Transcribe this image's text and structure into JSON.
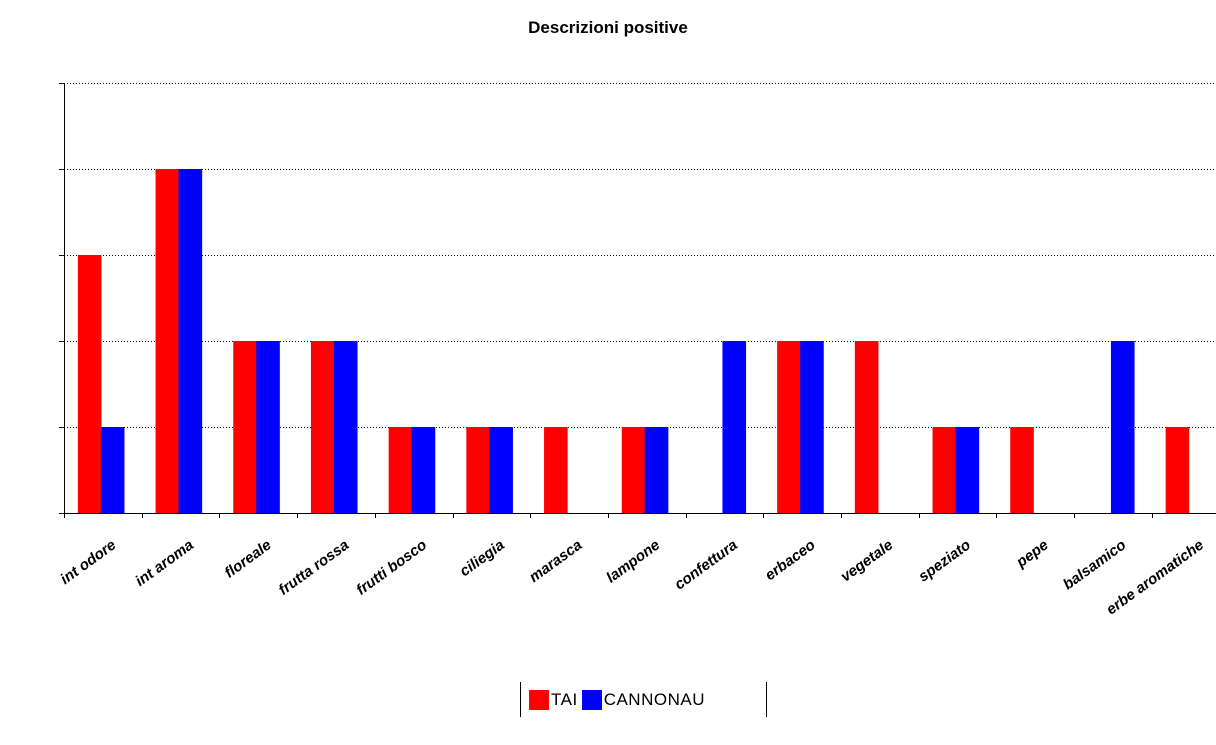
{
  "chart_data": {
    "type": "bar",
    "title": "Descrizioni positive",
    "categories": [
      "int odore",
      "int aroma",
      "floreale",
      "frutta rossa",
      "frutti bosco",
      "ciliegia",
      "marasca",
      "lampone",
      "confettura",
      "erbaceo",
      "vegetale",
      "speziato",
      "pepe",
      "balsamico",
      "erbe aromatiche"
    ],
    "series": [
      {
        "name": "TAI",
        "color": "#ff0000",
        "values": [
          3,
          4,
          2,
          2,
          1,
          1,
          1,
          1,
          0,
          2,
          2,
          1,
          1,
          0,
          1
        ]
      },
      {
        "name": "CANNONAU",
        "color": "#0000ff",
        "values": [
          1,
          4,
          2,
          2,
          1,
          1,
          0,
          1,
          2,
          2,
          0,
          1,
          0,
          2,
          0
        ]
      }
    ],
    "ylim": [
      0,
      5
    ],
    "grid": true,
    "legend_position": "bottom"
  }
}
